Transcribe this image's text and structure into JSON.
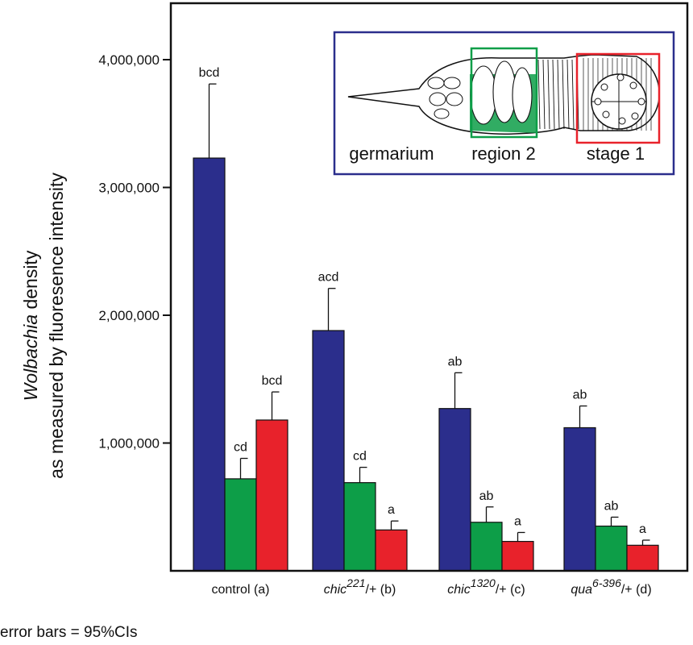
{
  "chart_data": {
    "type": "bar",
    "ylabel_line1_italic": "Wolbachia",
    "ylabel_line1_rest": " density",
    "ylabel_line2": "as measured by fluoresence intensity",
    "ylim": [
      0,
      4400000
    ],
    "yticks": [
      1000000,
      2000000,
      3000000,
      4000000
    ],
    "ytick_labels": [
      "1,000,000",
      "2,000,000",
      "3,000,000",
      "4,000,000"
    ],
    "categories": [
      {
        "label": "control (a)",
        "italic": "",
        "sup": "",
        "suffix": "control (a)"
      },
      {
        "label": "chic221/+ (b)",
        "italic": "chic",
        "sup": "221",
        "suffix": "/+ (b)"
      },
      {
        "label": "chic1320/+ (c)",
        "italic": "chic",
        "sup": "1320",
        "suffix": "/+ (c)"
      },
      {
        "label": "qua6-396/+ (d)",
        "italic": "qua",
        "sup": "6-396",
        "suffix": "/+ (d)"
      }
    ],
    "series": [
      {
        "color": "#2b2e8c",
        "values": [
          3230000,
          1880000,
          1270000,
          1120000
        ],
        "err_upper": [
          3810000,
          2210000,
          1550000,
          1290000
        ],
        "sig": [
          "bcd",
          "acd",
          "ab",
          "ab"
        ]
      },
      {
        "color": "#0d9e48",
        "values": [
          720000,
          690000,
          380000,
          350000
        ],
        "err_upper": [
          880000,
          810000,
          500000,
          420000
        ],
        "sig": [
          "cd",
          "cd",
          "ab",
          "ab"
        ]
      },
      {
        "color": "#e8222b",
        "values": [
          1180000,
          320000,
          230000,
          200000
        ],
        "err_upper": [
          1400000,
          390000,
          300000,
          240000
        ],
        "sig": [
          "bcd",
          "a",
          "a",
          "a"
        ]
      }
    ],
    "inset": {
      "labels": [
        "germarium",
        "region 2",
        "stage 1"
      ],
      "frame_color": "#2b2e8c",
      "region2_color": "#0d9e48",
      "stage1_color": "#e8222b"
    },
    "footnote": "error bars = 95%CIs"
  }
}
